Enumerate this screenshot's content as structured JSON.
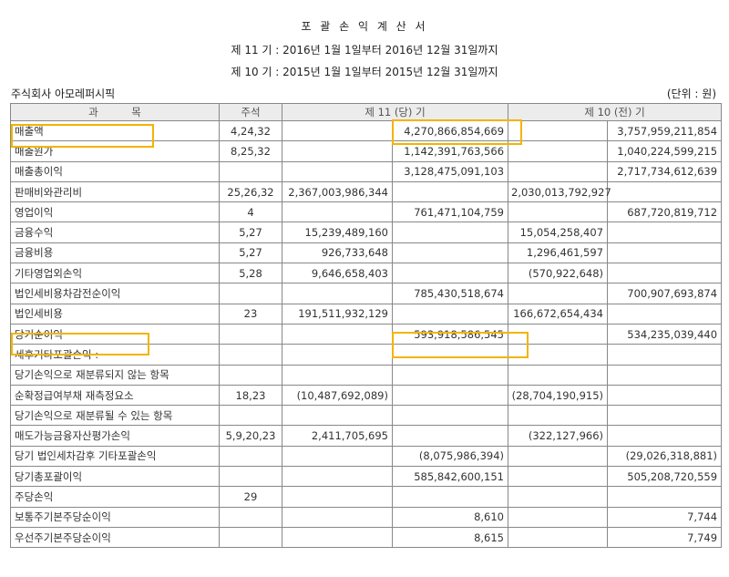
{
  "header": {
    "title": "포 괄 손 익 계 산 서",
    "current_period": "제 11 기 : 2016년 1월 1일부터 2016년 12월 31일까지",
    "prior_period": "제 10 기 : 2015년 1월 1일부터 2015년 12월 31일까지",
    "company": "주식회사 아모레퍼시픽",
    "unit": "(단위 : 원)"
  },
  "table": {
    "columns": {
      "account": "과          목",
      "note": "주석",
      "current": "제 11 (당) 기",
      "prior": "제 10 (전) 기"
    },
    "rows": [
      {
        "account": "매출액",
        "note": "4,24,32",
        "cur_a": "",
        "cur_b": "4,270,866,854,669",
        "prev_a": "",
        "prev_b": "3,757,959,211,854"
      },
      {
        "account": "매출원가",
        "note": "8,25,32",
        "cur_a": "",
        "cur_b": "1,142,391,763,566",
        "prev_a": "",
        "prev_b": "1,040,224,599,215"
      },
      {
        "account": "매출총이익",
        "note": "",
        "cur_a": "",
        "cur_b": "3,128,475,091,103",
        "prev_a": "",
        "prev_b": "2,717,734,612,639"
      },
      {
        "account": "판매비와관리비",
        "note": "25,26,32",
        "cur_a": "2,367,003,986,344",
        "cur_b": "",
        "prev_a": "2,030,013,792,927",
        "prev_b": ""
      },
      {
        "account": "영업이익",
        "note": "4",
        "cur_a": "",
        "cur_b": "761,471,104,759",
        "prev_a": "",
        "prev_b": "687,720,819,712"
      },
      {
        "account": "금융수익",
        "note": "5,27",
        "cur_a": "15,239,489,160",
        "cur_b": "",
        "prev_a": "15,054,258,407",
        "prev_b": ""
      },
      {
        "account": "금융비용",
        "note": "5,27",
        "cur_a": "926,733,648",
        "cur_b": "",
        "prev_a": "1,296,461,597",
        "prev_b": ""
      },
      {
        "account": "기타영업외손익",
        "note": "5,28",
        "cur_a": "9,646,658,403",
        "cur_b": "",
        "prev_a": "(570,922,648)",
        "prev_b": ""
      },
      {
        "account": "법인세비용차감전순이익",
        "note": "",
        "cur_a": "",
        "cur_b": "785,430,518,674",
        "prev_a": "",
        "prev_b": "700,907,693,874"
      },
      {
        "account": "법인세비용",
        "note": "23",
        "cur_a": "191,511,932,129",
        "cur_b": "",
        "prev_a": "166,672,654,434",
        "prev_b": ""
      },
      {
        "account": "당기순이익",
        "note": "",
        "cur_a": "",
        "cur_b": "593,918,586,545",
        "prev_a": "",
        "prev_b": "534,235,039,440"
      },
      {
        "account": "세후기타포괄손익 :",
        "note": "",
        "cur_a": "",
        "cur_b": "",
        "prev_a": "",
        "prev_b": ""
      },
      {
        "account": "당기손익으로 재분류되지 않는 항목",
        "note": "",
        "cur_a": "",
        "cur_b": "",
        "prev_a": "",
        "prev_b": ""
      },
      {
        "account": "순확정급여부채 재측정요소",
        "note": "18,23",
        "cur_a": "(10,487,692,089)",
        "cur_b": "",
        "prev_a": "(28,704,190,915)",
        "prev_b": ""
      },
      {
        "account": "당기손익으로 재분류될 수 있는 항목",
        "note": "",
        "cur_a": "",
        "cur_b": "",
        "prev_a": "",
        "prev_b": ""
      },
      {
        "account": "매도가능금융자산평가손익",
        "note": "5,9,20,23",
        "cur_a": "2,411,705,695",
        "cur_b": "",
        "prev_a": "(322,127,966)",
        "prev_b": ""
      },
      {
        "account": "당기 법인세차감후 기타포괄손익",
        "note": "",
        "cur_a": "",
        "cur_b": "(8,075,986,394)",
        "prev_a": "",
        "prev_b": "(29,026,318,881)"
      },
      {
        "account": "당기총포괄이익",
        "note": "",
        "cur_a": "",
        "cur_b": "585,842,600,151",
        "prev_a": "",
        "prev_b": "505,208,720,559"
      },
      {
        "account": "주당손익",
        "note": "29",
        "cur_a": "",
        "cur_b": "",
        "prev_a": "",
        "prev_b": ""
      },
      {
        "account": "보통주기본주당순이익",
        "note": "",
        "cur_a": "",
        "cur_b": "8,610",
        "prev_a": "",
        "prev_b": "7,744"
      },
      {
        "account": "우선주기본주당순이익",
        "note": "",
        "cur_a": "",
        "cur_b": "8,615",
        "prev_a": "",
        "prev_b": "7,749"
      }
    ]
  },
  "highlight_color": "#f2b400"
}
